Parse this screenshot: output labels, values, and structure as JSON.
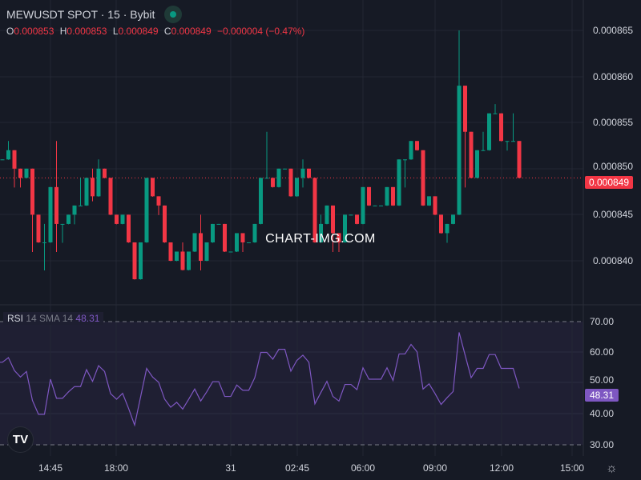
{
  "header": {
    "title": "MEWUSDT SPOT · 15 · Bybit",
    "status": "market-open-dot"
  },
  "ohlc": {
    "o_label": "O",
    "o": "0.000853",
    "h_label": "H",
    "h": "0.000853",
    "l_label": "L",
    "l": "0.000849",
    "c_label": "C",
    "c": "0.000849",
    "change": "−0.000004 (−0.47%)"
  },
  "rsi_legend": {
    "name": "RSI",
    "params": "14 SMA 14",
    "value": "48.31"
  },
  "price_axis": [
    "0.000865",
    "0.000860",
    "0.000855",
    "0.000850",
    "0.000845",
    "0.000840"
  ],
  "last_price": "0.000849",
  "rsi_axis": [
    "70.00",
    "60.00",
    "50.00",
    "40.00",
    "30.00"
  ],
  "rsi_last": "48.31",
  "time_axis": [
    "14:45",
    "18:00",
    "31",
    "02:45",
    "06:00",
    "09:00",
    "12:00",
    "15:00"
  ],
  "watermark": "CHART-IMG.COM",
  "logo": "TV",
  "colors": {
    "up": "#089981",
    "down": "#f23645",
    "rsi": "#7e57c2",
    "background": "#161a25"
  },
  "chart_data": [
    {
      "type": "candlestick",
      "ylim": [
        0.000838,
        0.000865
      ],
      "grid": true,
      "ohlc": [
        [
          0.000851,
          0.000851,
          0.000851,
          0.000851
        ],
        [
          0.000851,
          0.000853,
          0.000851,
          0.000852
        ],
        [
          0.000852,
          0.000852,
          0.000848,
          0.00085
        ],
        [
          0.00085,
          0.00085,
          0.000848,
          0.000849
        ],
        [
          0.000849,
          0.00085,
          0.000849,
          0.00085
        ],
        [
          0.00085,
          0.00085,
          0.000841,
          0.000845
        ],
        [
          0.000845,
          0.000845,
          0.000842,
          0.000842
        ],
        [
          0.000842,
          0.000844,
          0.000839,
          0.000842
        ],
        [
          0.000842,
          0.000848,
          0.000842,
          0.000848
        ],
        [
          0.000848,
          0.000853,
          0.000841,
          0.000844
        ],
        [
          0.000844,
          0.000844,
          0.000842,
          0.000844
        ],
        [
          0.000844,
          0.000845,
          0.000844,
          0.000845
        ],
        [
          0.000845,
          0.000846,
          0.000844,
          0.000846
        ],
        [
          0.000846,
          0.000849,
          0.000846,
          0.000846
        ],
        [
          0.000846,
          0.000849,
          0.000846,
          0.000849
        ],
        [
          0.000849,
          0.00085,
          0.0008465,
          0.000847
        ],
        [
          0.000847,
          0.000851,
          0.000847,
          0.00085
        ],
        [
          0.00085,
          0.00085,
          0.000849,
          0.000849
        ],
        [
          0.000849,
          0.000849,
          0.000845,
          0.000845
        ],
        [
          0.000845,
          0.000845,
          0.000844,
          0.000844
        ],
        [
          0.000844,
          0.000845,
          0.000844,
          0.000845
        ],
        [
          0.000845,
          0.000845,
          0.000842,
          0.000842
        ],
        [
          0.000842,
          0.000842,
          0.000838,
          0.000838
        ],
        [
          0.000838,
          0.000842,
          0.000838,
          0.000842
        ],
        [
          0.000842,
          0.000849,
          0.000842,
          0.000849
        ],
        [
          0.000849,
          0.000849,
          0.000847,
          0.000847
        ],
        [
          0.000847,
          0.000847,
          0.000845,
          0.000846
        ],
        [
          0.000846,
          0.000846,
          0.000842,
          0.000842
        ],
        [
          0.000842,
          0.000842,
          0.00084,
          0.00084
        ],
        [
          0.00084,
          0.000841,
          0.00084,
          0.000841
        ],
        [
          0.000841,
          0.000842,
          0.000839,
          0.000839
        ],
        [
          0.000839,
          0.000841,
          0.000839,
          0.000841
        ],
        [
          0.000841,
          0.000843,
          0.000841,
          0.000843
        ],
        [
          0.000843,
          0.000845,
          0.000839,
          0.00084
        ],
        [
          0.00084,
          0.000842,
          0.00084,
          0.000842
        ],
        [
          0.000842,
          0.000844,
          0.000842,
          0.000844
        ],
        [
          0.000844,
          0.000844,
          0.000844,
          0.000844
        ],
        [
          0.000844,
          0.000844,
          0.000841,
          0.000841
        ],
        [
          0.000841,
          0.000841,
          0.000841,
          0.000841
        ],
        [
          0.000841,
          0.000843,
          0.000841,
          0.000843
        ],
        [
          0.000843,
          0.000843,
          0.000841,
          0.000842
        ],
        [
          0.000842,
          0.000842,
          0.000842,
          0.000842
        ],
        [
          0.000842,
          0.000844,
          0.000842,
          0.000844
        ],
        [
          0.000844,
          0.000849,
          0.000844,
          0.000849
        ],
        [
          0.000849,
          0.000854,
          0.000849,
          0.000849
        ],
        [
          0.000849,
          0.000849,
          0.000848,
          0.000848
        ],
        [
          0.000848,
          0.00085,
          0.000848,
          0.00085
        ],
        [
          0.00085,
          0.00085,
          0.00085,
          0.00085
        ],
        [
          0.00085,
          0.00085,
          0.000847,
          0.000847
        ],
        [
          0.000847,
          0.000849,
          0.000847,
          0.000849
        ],
        [
          0.000849,
          0.000851,
          0.000848,
          0.00085
        ],
        [
          0.00085,
          0.00085,
          0.000849,
          0.000849
        ],
        [
          0.000849,
          0.000849,
          0.000842,
          0.000842
        ],
        [
          0.000842,
          0.000845,
          0.000842,
          0.000844
        ],
        [
          0.000844,
          0.000846,
          0.000844,
          0.000846
        ],
        [
          0.000846,
          0.000846,
          0.000841,
          0.000843
        ],
        [
          0.000843,
          0.000843,
          0.000841,
          0.000842
        ],
        [
          0.000842,
          0.000845,
          0.000842,
          0.000845
        ],
        [
          0.000845,
          0.000845,
          0.000845,
          0.000845
        ],
        [
          0.000845,
          0.000845,
          0.000844,
          0.000844
        ],
        [
          0.000844,
          0.000848,
          0.000844,
          0.000848
        ],
        [
          0.000848,
          0.000848,
          0.000846,
          0.000846
        ],
        [
          0.000846,
          0.000846,
          0.000846,
          0.000846
        ],
        [
          0.000846,
          0.000846,
          0.000846,
          0.000846
        ],
        [
          0.000846,
          0.000848,
          0.000846,
          0.000848
        ],
        [
          0.000848,
          0.000848,
          0.000846,
          0.000846
        ],
        [
          0.000846,
          0.000851,
          0.000846,
          0.000851
        ],
        [
          0.000851,
          0.000851,
          0.000848,
          0.000851
        ],
        [
          0.000851,
          0.000853,
          0.000851,
          0.000853
        ],
        [
          0.000853,
          0.000853,
          0.000852,
          0.000852
        ],
        [
          0.000852,
          0.000852,
          0.000846,
          0.000846
        ],
        [
          0.000846,
          0.000847,
          0.000846,
          0.000847
        ],
        [
          0.000847,
          0.000847,
          0.000845,
          0.000845
        ],
        [
          0.000845,
          0.000845,
          0.000843,
          0.000843
        ],
        [
          0.000843,
          0.000844,
          0.000842,
          0.000844
        ],
        [
          0.000844,
          0.000845,
          0.000844,
          0.000845
        ],
        [
          0.000845,
          0.000865,
          0.000845,
          0.000859
        ],
        [
          0.000859,
          0.000859,
          0.000848,
          0.000854
        ],
        [
          0.000854,
          0.000854,
          0.000849,
          0.000849
        ],
        [
          0.000849,
          0.000852,
          0.000849,
          0.000852
        ],
        [
          0.000852,
          0.000854,
          0.000852,
          0.000852
        ],
        [
          0.000852,
          0.000856,
          0.000852,
          0.000856
        ],
        [
          0.000856,
          0.000857,
          0.000856,
          0.000856
        ],
        [
          0.000856,
          0.000856,
          0.000853,
          0.000853
        ],
        [
          0.000853,
          0.000853,
          0.000852,
          0.000853
        ],
        [
          0.000853,
          0.000856,
          0.000853,
          0.000853
        ],
        [
          0.000853,
          0.000853,
          0.000849,
          0.000849
        ]
      ]
    },
    {
      "type": "line",
      "name": "RSI",
      "ylim": [
        30,
        70
      ],
      "bands": [
        30,
        70
      ],
      "values": [
        56.8,
        58.3,
        54.1,
        52.0,
        53.8,
        44.4,
        39.9,
        39.9,
        51.3,
        45.1,
        45.1,
        47.2,
        48.9,
        48.9,
        54.4,
        50.6,
        55.7,
        53.8,
        46.6,
        44.8,
        46.7,
        41.8,
        36.4,
        45.6,
        54.8,
        52.0,
        50.3,
        44.8,
        42.2,
        43.8,
        41.6,
        44.8,
        48.1,
        44.2,
        47.2,
        50.5,
        50.5,
        45.7,
        45.7,
        49.4,
        47.7,
        47.7,
        51.8,
        60.0,
        60.0,
        57.8,
        61.0,
        61.0,
        53.9,
        57.4,
        59.1,
        56.8,
        43.3,
        47.0,
        50.6,
        45.7,
        44.2,
        49.6,
        49.6,
        47.9,
        55.0,
        51.3,
        51.3,
        51.3,
        55.0,
        50.9,
        59.5,
        59.5,
        62.6,
        60.2,
        48.1,
        49.8,
        46.6,
        43.1,
        45.3,
        47.3,
        66.5,
        59.1,
        51.8,
        54.8,
        54.8,
        59.3,
        59.3,
        54.8,
        54.8,
        54.8,
        48.31
      ]
    }
  ]
}
